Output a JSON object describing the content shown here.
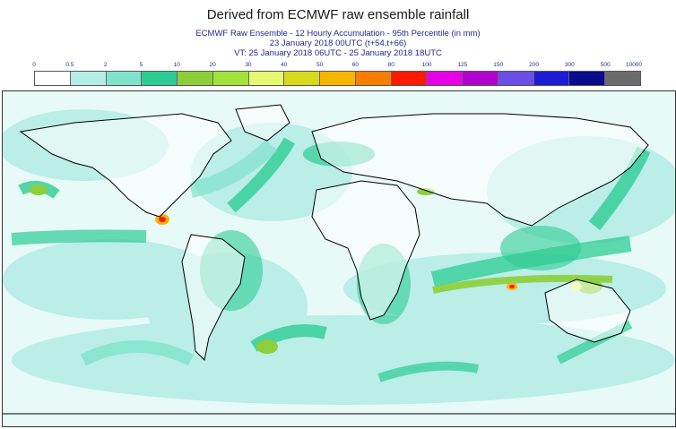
{
  "title": "Derived from ECMWF raw ensemble rainfall",
  "subtitle_line1": "ECMWF Raw Ensemble - 12 Hourly Accumulation - 95th Percentile (in mm)",
  "subtitle_line2": "23 January 2018 00UTC (t+54,t+66)",
  "subtitle_line3": "VT: 25 January 2018 06UTC - 25 January 2018 18UTC",
  "legend": {
    "thresholds": [
      "0",
      "0.5",
      "2",
      "5",
      "10",
      "20",
      "30",
      "40",
      "50",
      "60",
      "80",
      "100",
      "125",
      "150",
      "200",
      "300",
      "500",
      "10000"
    ],
    "colors": [
      "#ffffff",
      "#b3ede4",
      "#7fe3c9",
      "#2ecc94",
      "#8ccf3a",
      "#a2e23a",
      "#e6f870",
      "#d8d81c",
      "#f7b500",
      "#f77e00",
      "#ff1a00",
      "#e600e6",
      "#b300cc",
      "#6a4ee6",
      "#1c1cd6",
      "#0a0a8c",
      "#6b6b6b"
    ]
  }
}
